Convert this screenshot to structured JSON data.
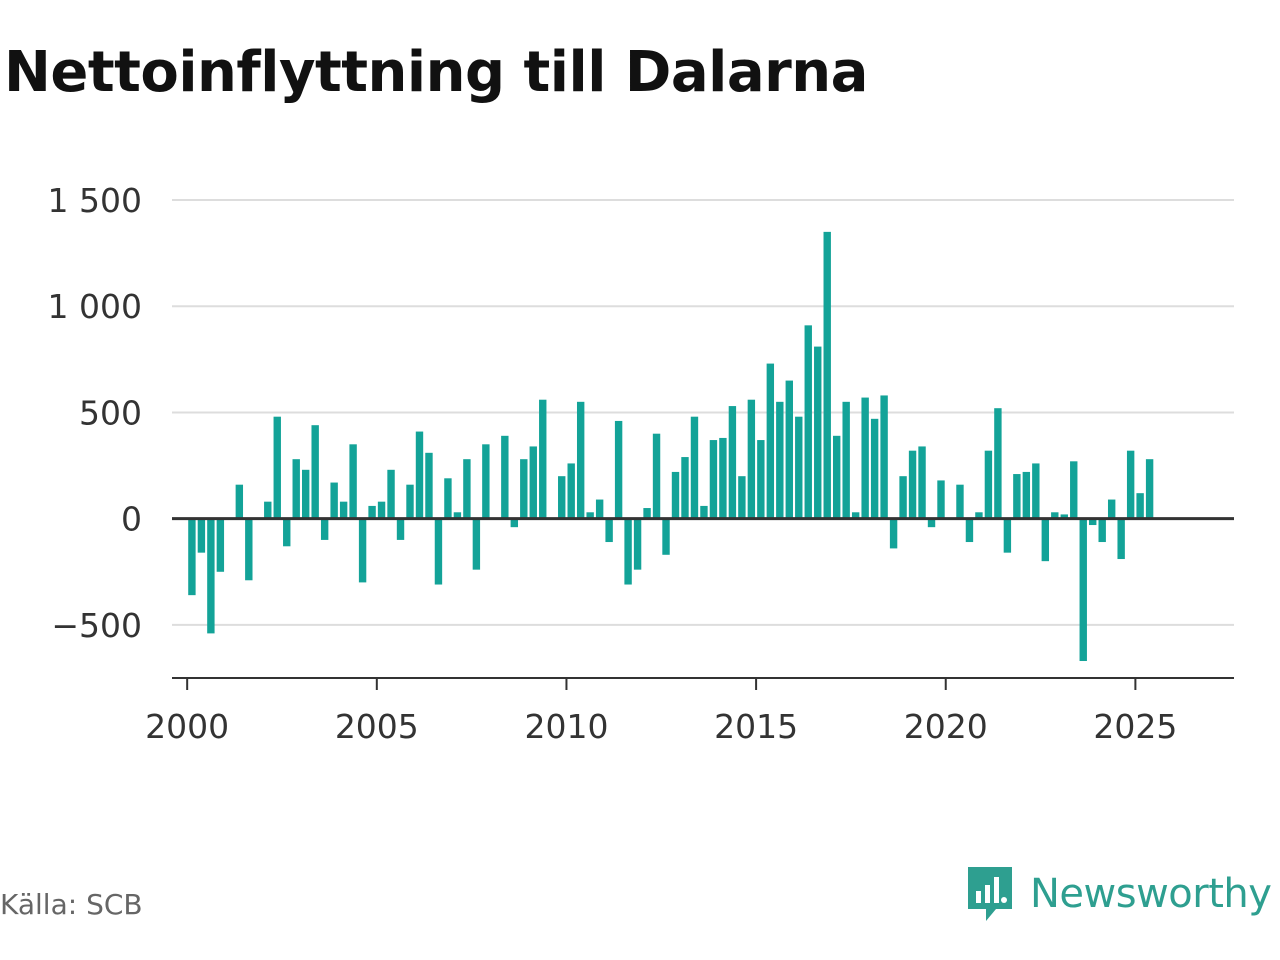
{
  "title": "Nettoinflyttning till Dalarna",
  "source": "Källa: SCB",
  "brand": {
    "name": "Newsworthy",
    "icon": "newsworthy-logo-icon",
    "color": "#2e9f90"
  },
  "colors": {
    "bar": "#13a398",
    "grid": "#dddddd",
    "zero_line": "#333333",
    "axis": "#333333"
  },
  "chart_data": {
    "type": "bar",
    "title": "Nettoinflyttning till Dalarna",
    "xlabel": "",
    "ylabel": "",
    "ylim": [
      -750,
      1500
    ],
    "xlim": [
      1999.6,
      2027.6
    ],
    "grid": true,
    "y_ticks": [
      1500,
      1000,
      500,
      0,
      -500
    ],
    "y_tick_labels": [
      "1 500",
      "1 000",
      "500",
      "0",
      "−500"
    ],
    "x_ticks": [
      2000,
      2005,
      2010,
      2015,
      2020,
      2025
    ],
    "x_tick_labels": [
      "2000",
      "2005",
      "2010",
      "2015",
      "2020",
      "2025"
    ],
    "x_start": 2000.125,
    "x_step": 0.25,
    "categories": [
      "2000 K1",
      "2000 K2",
      "2000 K3",
      "2000 K4",
      "2001 K1",
      "2001 K2",
      "2001 K3",
      "2001 K4",
      "2002 K1",
      "2002 K2",
      "2002 K3",
      "2002 K4",
      "2003 K1",
      "2003 K2",
      "2003 K3",
      "2003 K4",
      "2004 K1",
      "2004 K2",
      "2004 K3",
      "2004 K4",
      "2005 K1",
      "2005 K2",
      "2005 K3",
      "2005 K4",
      "2006 K1",
      "2006 K2",
      "2006 K3",
      "2006 K4",
      "2007 K1",
      "2007 K2",
      "2007 K3",
      "2007 K4",
      "2008 K1",
      "2008 K2",
      "2008 K3",
      "2008 K4",
      "2009 K1",
      "2009 K2",
      "2009 K3",
      "2009 K4",
      "2010 K1",
      "2010 K2",
      "2010 K3",
      "2010 K4",
      "2011 K1",
      "2011 K2",
      "2011 K3",
      "2011 K4",
      "2012 K1",
      "2012 K2",
      "2012 K3",
      "2012 K4",
      "2013 K1",
      "2013 K2",
      "2013 K3",
      "2013 K4",
      "2014 K1",
      "2014 K2",
      "2014 K3",
      "2014 K4",
      "2015 K1",
      "2015 K2",
      "2015 K3",
      "2015 K4",
      "2016 K1",
      "2016 K2",
      "2016 K3",
      "2016 K4",
      "2017 K1",
      "2017 K2",
      "2017 K3",
      "2017 K4",
      "2018 K1",
      "2018 K2",
      "2018 K3",
      "2018 K4",
      "2019 K1",
      "2019 K2",
      "2019 K3",
      "2019 K4",
      "2020 K1",
      "2020 K2",
      "2020 K3",
      "2020 K4",
      "2021 K1",
      "2021 K2",
      "2021 K3",
      "2021 K4",
      "2022 K1",
      "2022 K2",
      "2022 K3",
      "2022 K4",
      "2023 K1",
      "2023 K2",
      "2023 K3",
      "2023 K4",
      "2024 K1",
      "2024 K2",
      "2024 K3",
      "2024 K4",
      "2025 K1",
      "2025 K2"
    ],
    "values": [
      -360,
      -160,
      -540,
      -250,
      0,
      160,
      -290,
      0,
      80,
      480,
      -130,
      280,
      230,
      440,
      -100,
      170,
      80,
      350,
      -300,
      60,
      80,
      230,
      -100,
      160,
      410,
      310,
      -310,
      190,
      30,
      280,
      -240,
      350,
      0,
      390,
      -40,
      280,
      340,
      560,
      0,
      200,
      260,
      550,
      30,
      90,
      -110,
      460,
      -310,
      -240,
      50,
      400,
      -170,
      220,
      290,
      480,
      60,
      370,
      380,
      530,
      200,
      560,
      370,
      730,
      550,
      650,
      480,
      910,
      810,
      1350,
      390,
      550,
      30,
      570,
      470,
      580,
      -140,
      200,
      320,
      340,
      -40,
      180,
      0,
      160,
      -110,
      30,
      320,
      520,
      -160,
      210,
      220,
      260,
      -200,
      30,
      20,
      270,
      -670,
      -30,
      -110,
      90,
      -190,
      320,
      120,
      280
    ]
  }
}
